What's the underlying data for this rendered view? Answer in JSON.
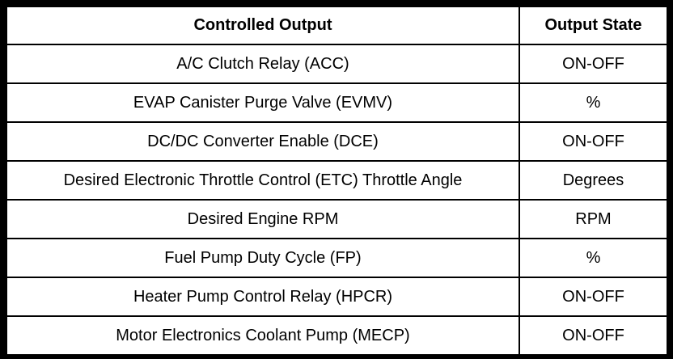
{
  "table": {
    "header": [
      "Controlled Output",
      "Output State"
    ],
    "rows": [
      [
        "A/C Clutch Relay (ACC)",
        "ON-OFF"
      ],
      [
        "EVAP Canister Purge Valve (EVMV)",
        "%"
      ],
      [
        "DC/DC Converter Enable (DCE)",
        "ON-OFF"
      ],
      [
        "Desired Electronic Throttle Control (ETC) Throttle Angle",
        "Degrees"
      ],
      [
        "Desired Engine RPM",
        "RPM"
      ],
      [
        "Fuel Pump Duty Cycle (FP)",
        "%"
      ],
      [
        "Heater Pump Control Relay (HPCR)",
        "ON-OFF"
      ],
      [
        "Motor Electronics Coolant Pump (MECP)",
        "ON-OFF"
      ]
    ]
  }
}
